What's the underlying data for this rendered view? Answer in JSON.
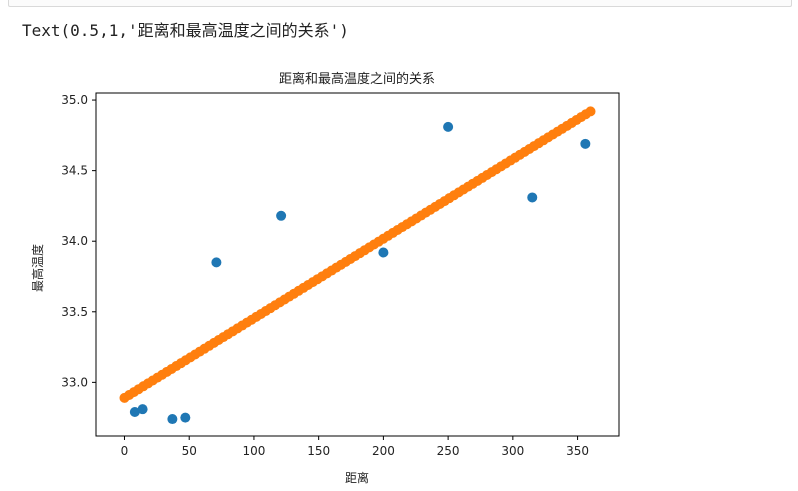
{
  "output": {
    "text": "Text(0.5,1,'距离和最高温度之间的关系')"
  },
  "chart_data": {
    "type": "scatter",
    "title": "距离和最高温度之间的关系",
    "xlabel": "距离",
    "ylabel": "最高温度",
    "xlim": [
      -22,
      382
    ],
    "ylim": [
      32.62,
      35.05
    ],
    "xticks": [
      "0",
      "50",
      "100",
      "150",
      "200",
      "250",
      "300",
      "350"
    ],
    "yticks": [
      "33.0",
      "33.5",
      "34.0",
      "34.5",
      "35.0"
    ],
    "grid": false,
    "series": [
      {
        "color": "#1f77b4",
        "points": [
          {
            "x": 8,
            "y": 32.79
          },
          {
            "x": 14,
            "y": 32.81
          },
          {
            "x": 37,
            "y": 32.74
          },
          {
            "x": 47,
            "y": 32.75
          },
          {
            "x": 71,
            "y": 33.85
          },
          {
            "x": 121,
            "y": 34.18
          },
          {
            "x": 200,
            "y": 33.92
          },
          {
            "x": 250,
            "y": 34.81
          },
          {
            "x": 315,
            "y": 34.31
          },
          {
            "x": 356,
            "y": 34.69
          }
        ]
      },
      {
        "color": "#ff7f0e",
        "line": {
          "x_start": 0,
          "x_end": 360,
          "y_start": 32.89,
          "y_end": 34.92,
          "count": 100
        }
      }
    ]
  }
}
